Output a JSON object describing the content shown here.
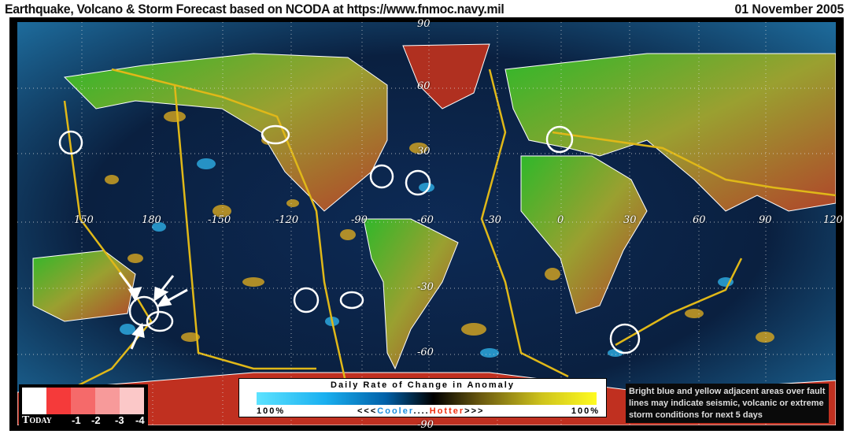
{
  "header": {
    "title": "Earthquake, Volcano & Storm Forecast based on NCODA at https://www.fnmoc.navy.mil",
    "date": "01 November 2005"
  },
  "map": {
    "latitude_labels": [
      "90",
      "60",
      "30",
      "-30",
      "-60",
      "-90"
    ],
    "longitude_labels": [
      "150",
      "180",
      "-150",
      "-120",
      "-90",
      "-60",
      "-30",
      "0",
      "30",
      "60",
      "90",
      "120"
    ],
    "highlight_marker": "white-circle",
    "arrow_marker": "white-arrow"
  },
  "today_legend": {
    "labels": [
      "Today",
      "-1",
      "-2",
      "-3",
      "-4"
    ],
    "colors": [
      "#ffffff",
      "#f53a3a",
      "#f56a6a",
      "#f79a9a",
      "#fbc8c8"
    ]
  },
  "scale_legend": {
    "title": "Daily Rate of Change in Anomaly",
    "left": "100%",
    "right": "100%",
    "arrows_left": "<<<",
    "cooler": "Cooler",
    "dots": "....",
    "hotter": "Hotter",
    "arrows_right": ">>>",
    "cooler_color": "#1a8fe0",
    "hotter_color": "#f03010"
  },
  "note": "Bright blue and yellow adjacent areas over fault lines may indicate seismic, volcanic or extreme storm conditions  for next 5 days"
}
